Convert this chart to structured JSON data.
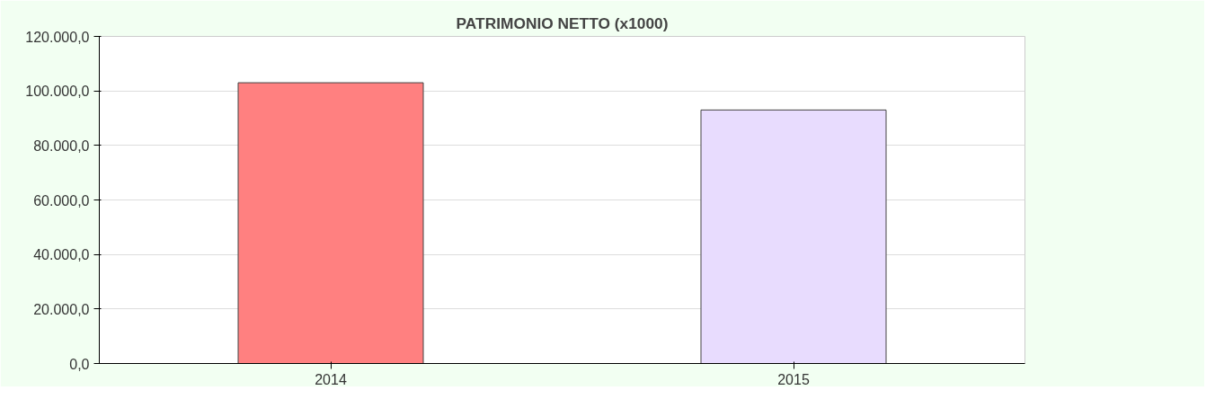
{
  "chart_data": {
    "type": "bar",
    "title": "PATRIMONIO NETTO (x1000)",
    "categories": [
      "2014",
      "2015"
    ],
    "values": [
      103000,
      93000
    ],
    "colors": [
      "#ff8080",
      "#e8dcfe"
    ],
    "ylim": [
      0,
      120000
    ],
    "yticks": [
      {
        "value": 0,
        "label": "0,0"
      },
      {
        "value": 20000,
        "label": "20.000,0"
      },
      {
        "value": 40000,
        "label": "40.000,0"
      },
      {
        "value": 60000,
        "label": "60.000,0"
      },
      {
        "value": 80000,
        "label": "80.000,0"
      },
      {
        "value": 100000,
        "label": "100.000,0"
      },
      {
        "value": 120000,
        "label": "120.000,0"
      }
    ],
    "grid": "y"
  }
}
